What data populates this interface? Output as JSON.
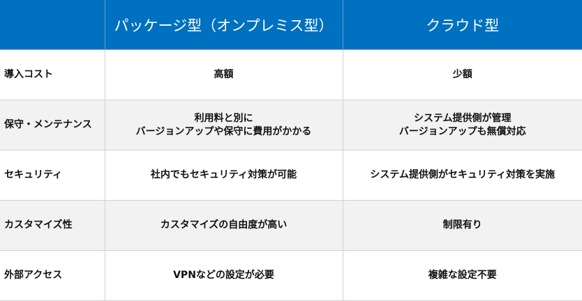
{
  "header": {
    "col0": "",
    "col1": "パッケージ型（オンプレミス型）",
    "col2": "クラウド型"
  },
  "colors": {
    "header_bg": "#0070c0",
    "alt_row_bg": "#f2f2f2"
  },
  "rows": [
    {
      "label": "導入コスト",
      "package": [
        "高額"
      ],
      "cloud": [
        "少額"
      ]
    },
    {
      "label": "保守・メンテナンス",
      "package": [
        "利用料と別に",
        "バージョンアップや保守に費用がかかる"
      ],
      "cloud": [
        "システム提供側が管理",
        "バージョンアップも無償対応"
      ]
    },
    {
      "label": "セキュリティ",
      "package": [
        "社内でもセキュリティ対策が可能"
      ],
      "cloud": [
        "システム提供側がセキュリティ対策を実施"
      ]
    },
    {
      "label": "カスタマイズ性",
      "package": [
        "カスタマイズの自由度が高い"
      ],
      "cloud": [
        "制限有り"
      ]
    },
    {
      "label": "外部アクセス",
      "package": [
        "VPNなどの設定が必要"
      ],
      "cloud": [
        "複雑な設定不要"
      ]
    }
  ]
}
